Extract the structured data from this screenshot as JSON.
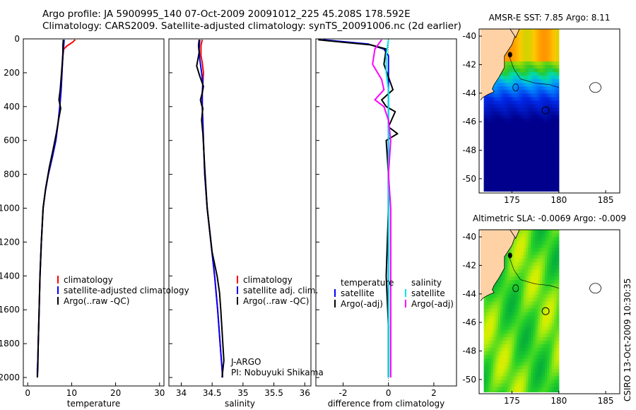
{
  "header": {
    "line1": "Argo profile: JA 5900995_140 07-Oct-2009 20091012_225 45.208S 178.592E",
    "line2": "Climatology: CARS2009. Satellite-adjusted climatology: synTS_20091006.nc (2d earlier)"
  },
  "colors": {
    "clim": "#ff0000",
    "sat": "#0000ff",
    "argo": "#000000",
    "sal_sat": "#00e5e5",
    "sal_argo": "#ff00ff"
  },
  "chart_data": [
    {
      "id": "temperature",
      "type": "line",
      "xlabel": "temperature",
      "xlim": [
        -1,
        31
      ],
      "ylim": [
        2050,
        0
      ],
      "xticks": [
        0,
        10,
        20,
        30
      ],
      "yticks": [
        0,
        200,
        400,
        600,
        800,
        1000,
        1200,
        1400,
        1600,
        1800,
        2000
      ],
      "legend": [
        "climatology",
        "satellite-adjusted climatology",
        "Argo(..raw -QC)"
      ],
      "series": [
        {
          "name": "climatology",
          "color": "#ff0000",
          "x": [
            10.8,
            10.2,
            9.0,
            8.2,
            8.0,
            7.9,
            7.8,
            7.6,
            7.3,
            6.9,
            6.4,
            5.6,
            4.7,
            4.0,
            3.5,
            3.1,
            2.8,
            2.6,
            2.4,
            2.3,
            2.2,
            2.2
          ],
          "y": [
            5,
            20,
            40,
            60,
            100,
            150,
            200,
            300,
            400,
            500,
            600,
            700,
            800,
            900,
            1000,
            1200,
            1400,
            1600,
            1800,
            1900,
            1950,
            2000
          ]
        },
        {
          "name": "satellite-adjusted climatology",
          "color": "#0000ff",
          "x": [
            8.3,
            8.2,
            8.1,
            8.0,
            7.9,
            7.8,
            7.6,
            7.3,
            6.9,
            6.4,
            5.6,
            4.7,
            4.0,
            3.5,
            3.1,
            2.8,
            2.6,
            2.4,
            2.3,
            2.2,
            2.2
          ],
          "y": [
            5,
            40,
            60,
            100,
            150,
            200,
            300,
            400,
            500,
            600,
            700,
            800,
            900,
            1000,
            1200,
            1400,
            1600,
            1800,
            1900,
            1950,
            2000
          ]
        },
        {
          "name": "Argo(..raw -QC)",
          "color": "#000000",
          "x": [
            8.1,
            8.0,
            8.0,
            7.9,
            7.7,
            7.4,
            7.1,
            7.5,
            7.0,
            6.5,
            5.8,
            4.9,
            4.1,
            3.5,
            3.1,
            2.8,
            2.6,
            2.4,
            2.3,
            2.2
          ],
          "y": [
            5,
            40,
            80,
            130,
            200,
            300,
            360,
            410,
            480,
            560,
            650,
            760,
            880,
            1000,
            1200,
            1400,
            1600,
            1800,
            1950,
            2000
          ]
        }
      ]
    },
    {
      "id": "salinity",
      "type": "line",
      "xlabel": "salinity",
      "xlim": [
        33.8,
        36.1
      ],
      "ylim": [
        2050,
        0
      ],
      "xticks": [
        34,
        34.5,
        35,
        35.5,
        36
      ],
      "legend": [
        "climatology",
        "satellite adj. clim.",
        "Argo(..raw -QC)"
      ],
      "annotation": [
        "J-ARGO",
        "PI: Nobuyuki Shikama"
      ],
      "series": [
        {
          "name": "climatology",
          "color": "#ff0000",
          "x": [
            34.34,
            34.32,
            34.32,
            34.34,
            34.36,
            34.35,
            34.34,
            34.34,
            34.35,
            34.36,
            34.38,
            34.42,
            34.48,
            34.54,
            34.59,
            34.63,
            34.66,
            34.67
          ],
          "y": [
            5,
            40,
            100,
            140,
            200,
            260,
            320,
            400,
            500,
            600,
            800,
            1000,
            1200,
            1400,
            1600,
            1800,
            1950,
            2000
          ]
        },
        {
          "name": "satellite adj. clim.",
          "color": "#0000ff",
          "x": [
            34.3,
            34.29,
            34.3,
            34.33,
            34.35,
            34.34,
            34.34,
            34.35,
            34.36,
            34.38,
            34.42,
            34.48,
            34.54,
            34.59,
            34.63,
            34.66,
            34.67
          ],
          "y": [
            5,
            60,
            120,
            200,
            260,
            320,
            400,
            500,
            600,
            800,
            1000,
            1200,
            1400,
            1600,
            1800,
            1950,
            2000
          ]
        },
        {
          "name": "Argo(..raw -QC)",
          "color": "#000000",
          "x": [
            34.29,
            34.28,
            34.29,
            34.27,
            34.25,
            34.3,
            34.36,
            34.34,
            34.31,
            34.33,
            34.35,
            34.34,
            34.33,
            34.34,
            34.35,
            34.36,
            34.38,
            34.42,
            34.5,
            34.58,
            34.62,
            34.64,
            34.69,
            34.66
          ],
          "y": [
            5,
            40,
            80,
            120,
            160,
            220,
            280,
            320,
            360,
            390,
            410,
            440,
            480,
            520,
            560,
            620,
            760,
            1000,
            1260,
            1400,
            1500,
            1600,
            1900,
            2000
          ]
        }
      ]
    },
    {
      "id": "difference",
      "type": "line",
      "xlabel": "difference from climatology",
      "xlim": [
        -3.2,
        3.0
      ],
      "ylim": [
        2050,
        0
      ],
      "xticks": [
        -2,
        0,
        2
      ],
      "legend": [
        "temperature",
        "satellite",
        "Argo(-adj)",
        "salinity",
        "satellite",
        "Argo(-adj)"
      ],
      "series": [
        {
          "name": "temperature satellite",
          "color": "#0000ff",
          "x": [
            -2.9,
            -2.1,
            -0.9,
            -0.2,
            0.0,
            0.0,
            0.0,
            0.0,
            0.0,
            0.0,
            0.0,
            0.0
          ],
          "y": [
            5,
            15,
            30,
            60,
            100,
            200,
            400,
            600,
            1000,
            1400,
            1800,
            2000
          ]
        },
        {
          "name": "temperature Argo(-adj)",
          "color": "#000000",
          "x": [
            -3.1,
            -2.0,
            -0.8,
            -0.1,
            -0.2,
            0.2,
            -0.3,
            -0.1,
            0.3,
            0.0,
            0.4,
            -0.1,
            0.0,
            0.0,
            -0.1,
            0.0,
            0.0
          ],
          "y": [
            5,
            20,
            35,
            60,
            150,
            300,
            360,
            400,
            430,
            520,
            560,
            600,
            800,
            1000,
            1400,
            1700,
            2000
          ]
        },
        {
          "name": "salinity satellite",
          "color": "#00e5e5",
          "x": [
            0.0,
            -0.1,
            -0.1,
            0.0,
            0.0,
            0.0,
            0.0,
            0.0,
            0.0
          ],
          "y": [
            5,
            100,
            200,
            300,
            500,
            800,
            1200,
            1600,
            2000
          ]
        },
        {
          "name": "salinity Argo(-adj)",
          "color": "#ff00ff",
          "x": [
            -0.3,
            -0.6,
            -0.7,
            -0.3,
            -0.2,
            -0.6,
            -0.2,
            0.0,
            0.1,
            0.0,
            0.1,
            0.1,
            0.1,
            0.1
          ],
          "y": [
            5,
            60,
            150,
            240,
            300,
            360,
            400,
            480,
            600,
            800,
            1000,
            1400,
            1800,
            2000
          ]
        }
      ]
    },
    {
      "id": "amsr-map",
      "type": "heatmap",
      "title": "AMSR-E SST: 7.85 Argo: 8.11",
      "xticks": [
        175,
        180,
        185
      ],
      "yticks": [
        -40,
        -42,
        -44,
        -46,
        -48,
        -50
      ],
      "xlim": [
        171.5,
        186.5
      ],
      "ylim": [
        -51,
        -39.5
      ]
    },
    {
      "id": "sla-map",
      "type": "heatmap",
      "title": "Altimetric SLA: -0.0069 Argo: -0.009",
      "xticks": [
        175,
        180,
        185
      ],
      "yticks": [
        -40,
        -42,
        -44,
        -46,
        -48,
        -50
      ],
      "xlim": [
        171.5,
        186.5
      ],
      "ylim": [
        -51,
        -39.5
      ]
    }
  ],
  "footer": {
    "stamp": "CSIRO 13-Oct-2009 10:30:35"
  }
}
